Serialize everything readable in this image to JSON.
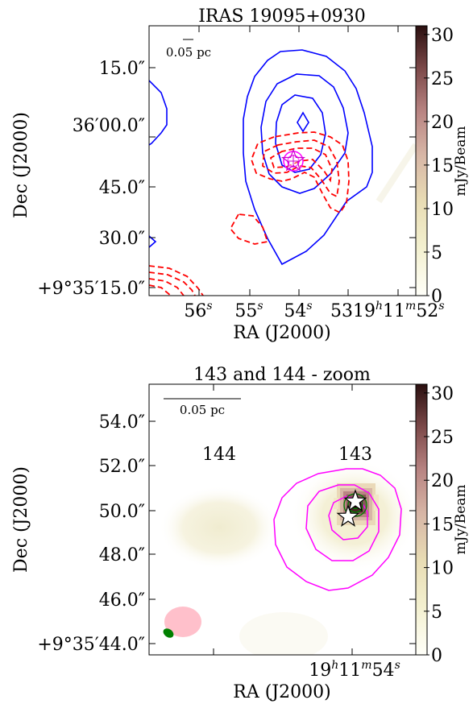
{
  "chart_data": [
    {
      "type": "heatmap",
      "title": "IRAS 19095+0930",
      "xlabel": "RA (J2000)",
      "ylabel": "Dec (J2000)",
      "x_ticks": [
        "56",
        "55",
        "54",
        "53",
        "19h11m52s"
      ],
      "x_tick_labels": [
        {
          "main": "56",
          "sup": "s"
        },
        {
          "main": "55",
          "sup": "s"
        },
        {
          "main": "54",
          "sup": "s"
        },
        {
          "main": "53",
          "sup": ""
        },
        {
          "main": "19",
          "sup": "h"
        }
      ],
      "x_tick_tail": [
        {
          "main": "11",
          "sup": "m"
        },
        {
          "main": "52",
          "sup": "s"
        }
      ],
      "y_ticks": [
        "+9°35′15.0″",
        "30.0″",
        "45.0″",
        "36′00.0″",
        "15.0″"
      ],
      "scalebar_label": "0.05 pc",
      "colorbar": {
        "label": "mJy/Beam",
        "ticks": [
          0,
          5,
          10,
          15,
          20,
          25,
          30
        ],
        "range": [
          0,
          31
        ]
      },
      "contours": [
        {
          "name": "blue solid",
          "color": "#0000ff",
          "style": "solid"
        },
        {
          "name": "red dashed",
          "color": "#ff0000",
          "style": "dashed"
        },
        {
          "name": "magenta",
          "color": "#ff00ff",
          "style": "solid"
        }
      ],
      "markers": [
        "star"
      ]
    },
    {
      "type": "heatmap",
      "title": "143 and 144 - zoom",
      "xlabel": "RA (J2000)",
      "ylabel": "Dec (J2000)",
      "x_tick_label": {
        "parts": [
          {
            "main": "19",
            "sup": "h"
          },
          {
            "main": "11",
            "sup": "m"
          },
          {
            "main": "54",
            "sup": "s"
          }
        ]
      },
      "y_ticks": [
        "+9°35′44.0″",
        "46.0″",
        "48.0″",
        "50.0″",
        "52.0″",
        "54.0″"
      ],
      "scalebar_label": "0.05 pc",
      "source_labels": [
        "144",
        "143"
      ],
      "colorbar": {
        "label": "mJy/Beam",
        "ticks": [
          0,
          5,
          10,
          15,
          20,
          25,
          30
        ],
        "range": [
          0,
          31
        ]
      },
      "sources": [
        {
          "label": "143",
          "peak_mJy_beam": 31,
          "dec_arcsec": 50.2
        },
        {
          "label": "144",
          "peak_mJy_beam": 3,
          "dec_arcsec": 49.6
        }
      ],
      "contours": [
        {
          "name": "magenta",
          "color": "#ff00ff",
          "style": "solid"
        },
        {
          "name": "green",
          "color": "#008000",
          "style": "solid"
        }
      ],
      "beams": [
        {
          "color": "#ffc0cb"
        },
        {
          "color": "#008000"
        }
      ],
      "markers": [
        "star",
        "star"
      ]
    }
  ]
}
